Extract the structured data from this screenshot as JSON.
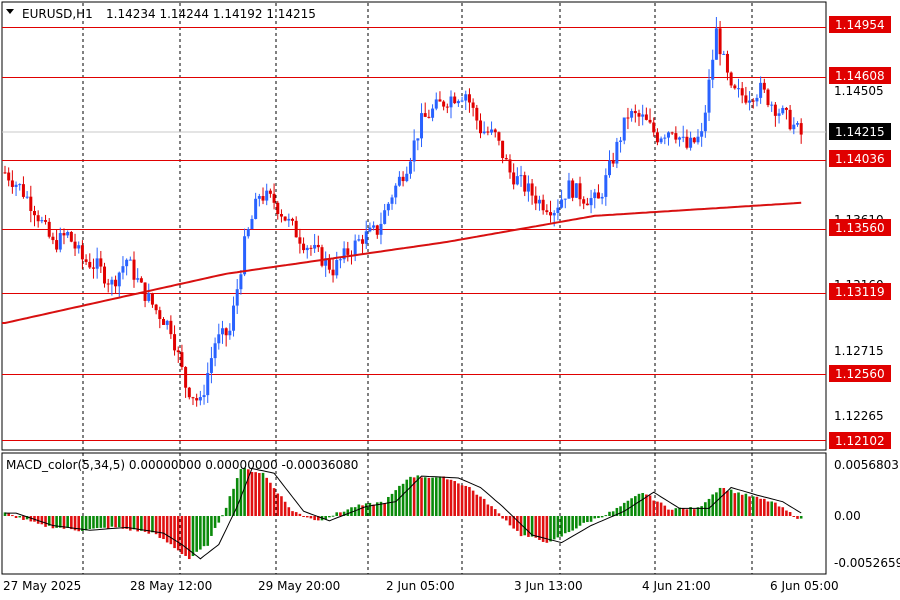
{
  "header": {
    "symbol": "EURUSD,H1",
    "ohlc": "1.14234 1.14244 1.14192 1.14215"
  },
  "macd": {
    "label": "MACD_color(5,34,5) 0.00000000 0.00000000 -0.00036080",
    "scale_labels": [
      "0.0056803",
      "0.00",
      "-0.0052659"
    ]
  },
  "price_axis": {
    "tick_labels": [
      "1.14505",
      "1.13610",
      "1.13160",
      "1.12715",
      "1.12265"
    ],
    "tick_values": [
      1.14505,
      1.1361,
      1.1316,
      1.12715,
      1.12265
    ],
    "current_price": "1.14215",
    "level_labels": [
      "1.14954",
      "1.14608",
      "1.14036",
      "1.13560",
      "1.13119",
      "1.12560",
      "1.12102"
    ]
  },
  "time_axis": {
    "labels": [
      "27 May 2025",
      "28 May 12:00",
      "29 May 20:00",
      "2 Jun 05:00",
      "3 Jun 13:00",
      "4 Jun 21:00",
      "6 Jun 05:00"
    ]
  },
  "colors": {
    "bull": "#2962ff",
    "bear": "#e00000",
    "level_line": "#e00000",
    "ma_line": "#d81010",
    "macd_pos": "#0a8a0a",
    "macd_neg": "#e01010",
    "signal": "#000000"
  },
  "chart_data": {
    "type": "candlestick",
    "instrument": "EURUSD",
    "timeframe": "H1",
    "ylim": [
      1.1205,
      1.1509
    ],
    "horizontal_levels": [
      1.14954,
      1.14608,
      1.14036,
      1.1356,
      1.13119,
      1.1256,
      1.12102
    ],
    "anchors": [
      [
        0,
        1.1395
      ],
      [
        4,
        1.1385
      ],
      [
        8,
        1.137
      ],
      [
        13,
        1.1345
      ],
      [
        17,
        1.1352
      ],
      [
        21,
        1.1335
      ],
      [
        25,
        1.133
      ],
      [
        29,
        1.1318
      ],
      [
        33,
        1.1335
      ],
      [
        37,
        1.1315
      ],
      [
        41,
        1.13
      ],
      [
        45,
        1.1288
      ],
      [
        49,
        1.1248
      ],
      [
        53,
        1.1235
      ],
      [
        57,
        1.1278
      ],
      [
        61,
        1.1285
      ],
      [
        65,
        1.1345
      ],
      [
        69,
        1.138
      ],
      [
        73,
        1.1375
      ],
      [
        77,
        1.136
      ],
      [
        81,
        1.1347
      ],
      [
        85,
        1.1338
      ],
      [
        89,
        1.1328
      ],
      [
        93,
        1.134
      ],
      [
        97,
        1.135
      ],
      [
        101,
        1.1355
      ],
      [
        105,
        1.138
      ],
      [
        109,
        1.14
      ],
      [
        113,
        1.143
      ],
      [
        117,
        1.144
      ],
      [
        121,
        1.1447
      ],
      [
        125,
        1.145
      ],
      [
        129,
        1.1425
      ],
      [
        133,
        1.142
      ],
      [
        137,
        1.1395
      ],
      [
        141,
        1.1385
      ],
      [
        145,
        1.1375
      ],
      [
        149,
        1.137
      ],
      [
        153,
        1.1385
      ],
      [
        157,
        1.1378
      ],
      [
        161,
        1.1375
      ],
      [
        165,
        1.1405
      ],
      [
        169,
        1.1435
      ],
      [
        173,
        1.1432
      ],
      [
        177,
        1.142
      ],
      [
        181,
        1.1426
      ],
      [
        185,
        1.1412
      ],
      [
        189,
        1.142
      ],
      [
        193,
        1.1492
      ],
      [
        197,
        1.145
      ],
      [
        201,
        1.1448
      ],
      [
        205,
        1.1452
      ],
      [
        209,
        1.144
      ],
      [
        213,
        1.143
      ],
      [
        216,
        1.1421
      ]
    ],
    "moving_average": [
      [
        0,
        1.1291
      ],
      [
        60,
        1.1325
      ],
      [
        120,
        1.1347
      ],
      [
        160,
        1.1365
      ],
      [
        216,
        1.1374
      ]
    ],
    "macd_anchors": [
      [
        0,
        0.0003
      ],
      [
        10,
        -0.001
      ],
      [
        20,
        -0.0015
      ],
      [
        30,
        -0.0012
      ],
      [
        40,
        -0.0018
      ],
      [
        45,
        -0.003
      ],
      [
        50,
        -0.0045
      ],
      [
        55,
        -0.003
      ],
      [
        60,
        0.001
      ],
      [
        64,
        0.005
      ],
      [
        70,
        0.0045
      ],
      [
        78,
        0.0005
      ],
      [
        85,
        -0.0005
      ],
      [
        95,
        0.001
      ],
      [
        103,
        0.0015
      ],
      [
        110,
        0.0042
      ],
      [
        120,
        0.004
      ],
      [
        126,
        0.003
      ],
      [
        132,
        0.001
      ],
      [
        140,
        -0.002
      ],
      [
        148,
        -0.0028
      ],
      [
        156,
        -0.001
      ],
      [
        165,
        0.0005
      ],
      [
        173,
        0.0025
      ],
      [
        180,
        0.0008
      ],
      [
        188,
        0.0008
      ],
      [
        194,
        0.003
      ],
      [
        201,
        0.0022
      ],
      [
        208,
        0.0015
      ],
      [
        216,
        -0.0004
      ]
    ],
    "macd_ylim": [
      -0.0052659,
      0.0056803
    ]
  }
}
